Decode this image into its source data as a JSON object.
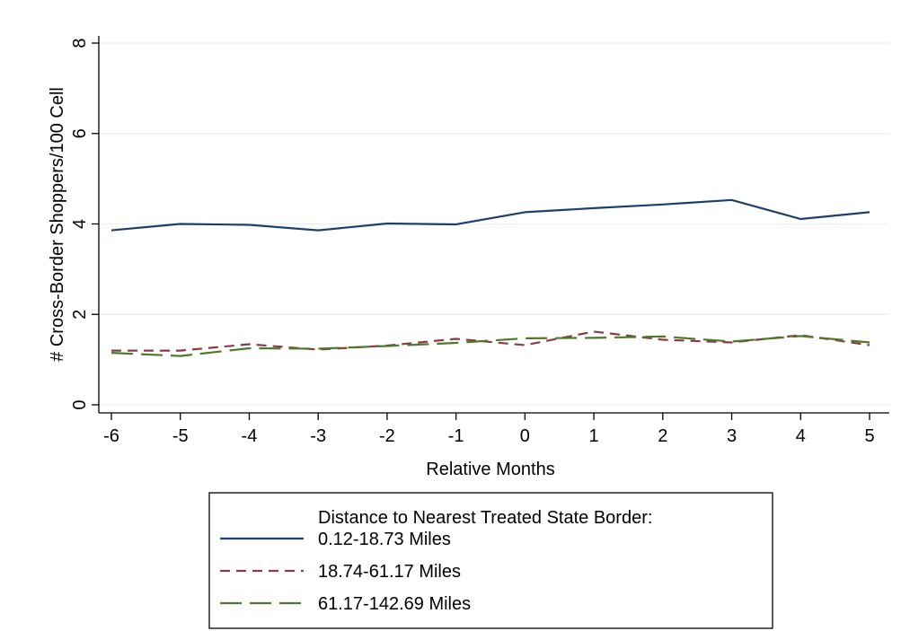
{
  "chart_data": {
    "type": "line",
    "title": "",
    "xlabel": "Relative Months",
    "ylabel": "# Cross-Border Shoppers/100 Cell",
    "x": [
      -6,
      -5,
      -4,
      -3,
      -2,
      -1,
      0,
      1,
      2,
      3,
      4,
      5
    ],
    "xlim": [
      -6,
      5
    ],
    "ylim": [
      0,
      8
    ],
    "x_ticks": [
      "-6",
      "-5",
      "-4",
      "-3",
      "-2",
      "-1",
      "0",
      "1",
      "2",
      "3",
      "4",
      "5"
    ],
    "y_ticks": [
      "0",
      "2",
      "4",
      "6",
      "8"
    ],
    "grid": "horizontal",
    "legend_title": "Distance to Nearest Treated State Border:",
    "legend_position": "bottom",
    "series": [
      {
        "name": "0.12-18.73 Miles",
        "color": "#1f3f6b",
        "style": "solid",
        "values": [
          3.86,
          4.0,
          3.98,
          3.86,
          4.01,
          3.99,
          4.26,
          4.35,
          4.43,
          4.53,
          4.11,
          4.26
        ]
      },
      {
        "name": "18.74-61.17 Miles",
        "color": "#8c3b45",
        "style": "dashed",
        "values": [
          1.2,
          1.2,
          1.34,
          1.22,
          1.31,
          1.46,
          1.32,
          1.62,
          1.44,
          1.38,
          1.54,
          1.32
        ]
      },
      {
        "name": "61.17-142.69 Miles",
        "color": "#4d7a2a",
        "style": "longdash",
        "values": [
          1.15,
          1.08,
          1.25,
          1.24,
          1.3,
          1.37,
          1.47,
          1.48,
          1.51,
          1.4,
          1.52,
          1.38
        ]
      }
    ]
  }
}
